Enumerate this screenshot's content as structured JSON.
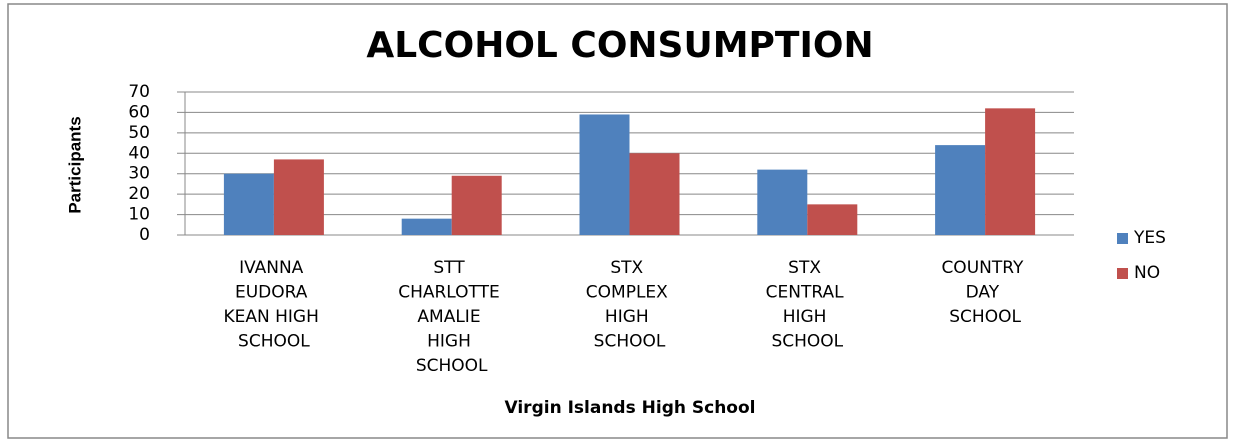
{
  "chart_data": {
    "type": "bar",
    "title": "ALCOHOL CONSUMPTION",
    "x_label": "Virgin Islands High School",
    "y_label": "Participants",
    "categories": [
      "IVANNA EUDORA KEAN HIGH SCHOOL",
      "STT CHARLOTTE AMALIE HIGH SCHOOL",
      "STX COMPLEX HIGH SCHOOL",
      "STX CENTRAL HIGH SCHOOL",
      "COUNTRY DAY SCHOOL"
    ],
    "series": [
      {
        "name": "YES",
        "color": "#4f81bd",
        "values": [
          30,
          8,
          59,
          32,
          44
        ]
      },
      {
        "name": "NO",
        "color": "#c0504d",
        "values": [
          37,
          29,
          40,
          15,
          62
        ]
      }
    ],
    "ylim": [
      0,
      70
    ],
    "yticks": [
      0,
      10,
      20,
      30,
      40,
      50,
      60,
      70
    ],
    "grid": true,
    "legend": "right"
  }
}
